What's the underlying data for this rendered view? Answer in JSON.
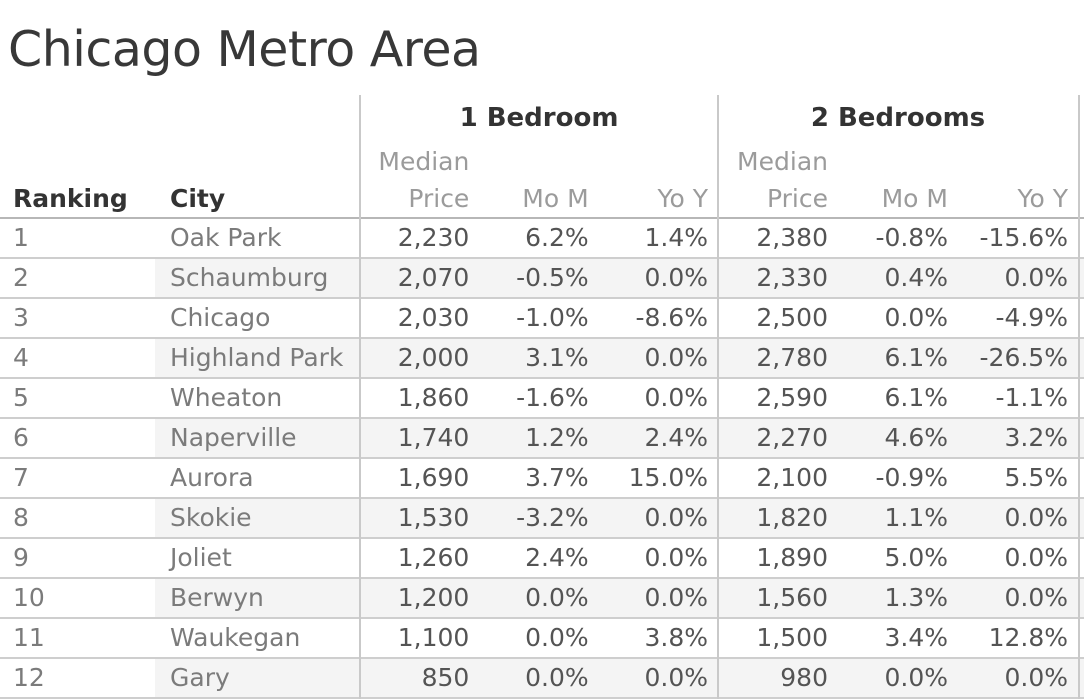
{
  "title": "Chicago Metro Area",
  "header": {
    "ranking": "Ranking",
    "city": "City",
    "group1": "1 Bedroom",
    "group2": "2 Bedrooms",
    "median_line1": "Median",
    "median_line2": "Price",
    "mom": "Mo M",
    "yoy": "Yo Y"
  },
  "colors": {
    "title_text": "#383838",
    "header_text": "#333333",
    "subheader_text": "#9b9b9b",
    "row_label_text": "#7b7b7b",
    "value_text": "#545454",
    "row_band": "#f4f4f4",
    "grid_line": "#cecece",
    "header_line": "#b7b7b7"
  },
  "chart_data": {
    "type": "table",
    "title": "Chicago Metro Area",
    "column_groups": [
      "1 Bedroom",
      "2 Bedrooms"
    ],
    "columns": [
      "Ranking",
      "City",
      "1 Bedroom Median Price",
      "1 Bedroom Mo M",
      "1 Bedroom Yo Y",
      "2 Bedrooms Median Price",
      "2 Bedrooms Mo M",
      "2 Bedrooms Yo Y"
    ],
    "rows": [
      [
        "1",
        "Oak Park",
        "2,230",
        "6.2%",
        "1.4%",
        "2,380",
        "-0.8%",
        "-15.6%"
      ],
      [
        "2",
        "Schaumburg",
        "2,070",
        "-0.5%",
        "0.0%",
        "2,330",
        "0.4%",
        "0.0%"
      ],
      [
        "3",
        "Chicago",
        "2,030",
        "-1.0%",
        "-8.6%",
        "2,500",
        "0.0%",
        "-4.9%"
      ],
      [
        "4",
        "Highland Park",
        "2,000",
        "3.1%",
        "0.0%",
        "2,780",
        "6.1%",
        "-26.5%"
      ],
      [
        "5",
        "Wheaton",
        "1,860",
        "-1.6%",
        "0.0%",
        "2,590",
        "6.1%",
        "-1.1%"
      ],
      [
        "6",
        "Naperville",
        "1,740",
        "1.2%",
        "2.4%",
        "2,270",
        "4.6%",
        "3.2%"
      ],
      [
        "7",
        "Aurora",
        "1,690",
        "3.7%",
        "15.0%",
        "2,100",
        "-0.9%",
        "5.5%"
      ],
      [
        "8",
        "Skokie",
        "1,530",
        "-3.2%",
        "0.0%",
        "1,820",
        "1.1%",
        "0.0%"
      ],
      [
        "9",
        "Joliet",
        "1,260",
        "2.4%",
        "0.0%",
        "1,890",
        "5.0%",
        "0.0%"
      ],
      [
        "10",
        "Berwyn",
        "1,200",
        "0.0%",
        "0.0%",
        "1,560",
        "1.3%",
        "0.0%"
      ],
      [
        "11",
        "Waukegan",
        "1,100",
        "0.0%",
        "3.8%",
        "1,500",
        "3.4%",
        "12.8%"
      ],
      [
        "12",
        "Gary",
        "850",
        "0.0%",
        "0.0%",
        "980",
        "0.0%",
        "0.0%"
      ]
    ]
  }
}
